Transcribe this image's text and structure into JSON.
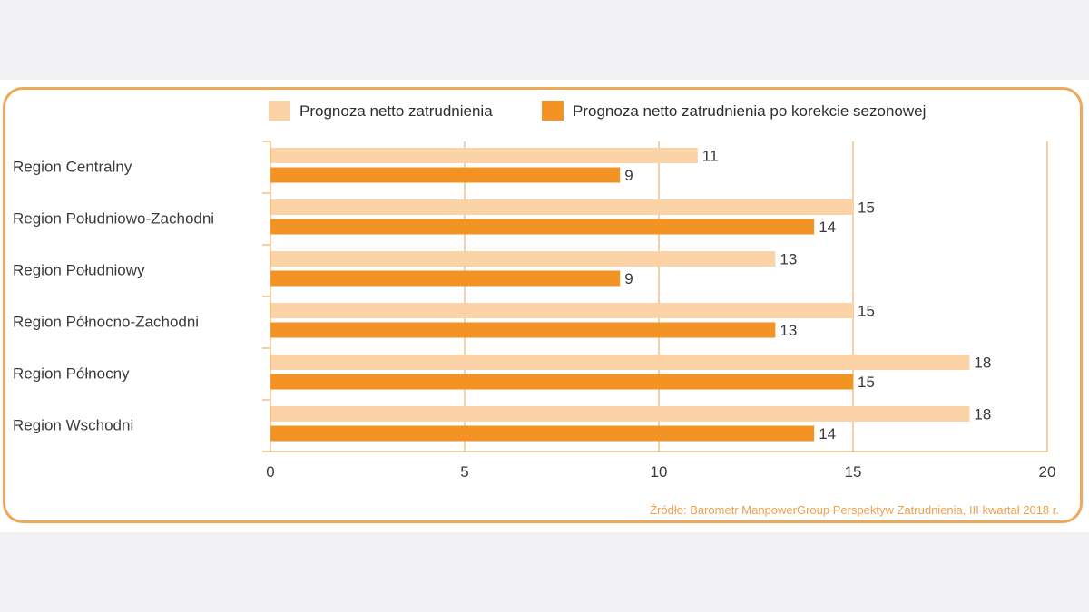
{
  "chart_data": {
    "type": "bar",
    "orientation": "horizontal",
    "categories": [
      "Region Centralny",
      "Region Południowo-Zachodni",
      "Region Południowy",
      "Region Północno-Zachodni",
      "Region Północny",
      "Region Wschodni"
    ],
    "series": [
      {
        "name": "Prognoza netto zatrudnienia",
        "color": "#fbd3a6",
        "values": [
          11,
          15,
          13,
          15,
          18,
          18
        ]
      },
      {
        "name": "Prognoza netto zatrudnienia po korekcie sezonowej",
        "color": "#f29324",
        "values": [
          9,
          14,
          9,
          13,
          15,
          14
        ]
      }
    ],
    "xlim": [
      0,
      20
    ],
    "xticks": [
      0,
      5,
      10,
      15,
      20
    ],
    "grid": true,
    "legend_position": "top",
    "title": "",
    "xlabel": "",
    "ylabel": ""
  },
  "source": "Źródło: Barometr ManpowerGroup Perspektyw Zatrudnienia, III kwartał 2018 r.",
  "colors": {
    "frame": "#eda95a",
    "grid": "#e9a04c",
    "source": "#eea04a"
  }
}
